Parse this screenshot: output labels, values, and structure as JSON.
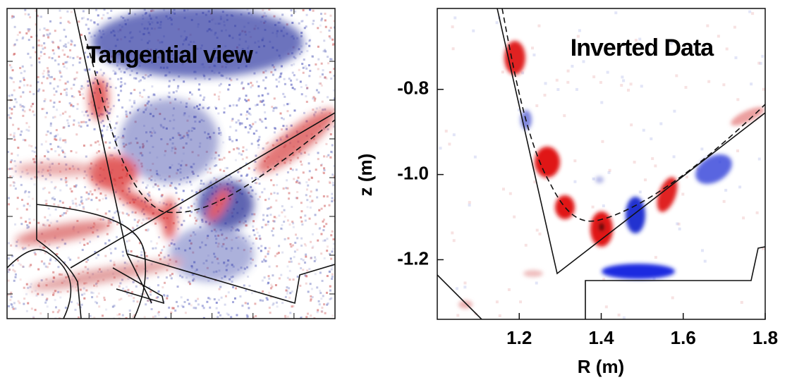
{
  "chart_data": [
    {
      "type": "image",
      "title": "Tangential view"
    },
    {
      "type": "image",
      "title": "Inverted Data",
      "x_label": "R (m)",
      "y_label": "z (m)",
      "xlim": [
        1.0,
        1.8
      ],
      "ylim": [
        -1.34,
        -0.61
      ],
      "xticks": [
        1.2,
        1.4,
        1.6,
        1.8
      ],
      "yticks": [
        -0.8,
        {
          "value": -1,
          "label": "-1.0"
        },
        -1.2
      ]
    }
  ]
}
